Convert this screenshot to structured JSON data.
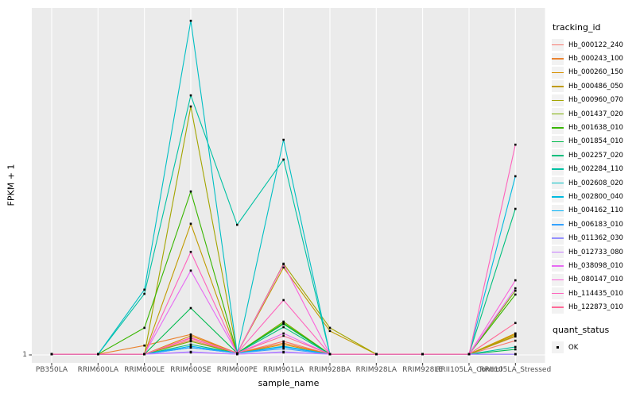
{
  "figure": {
    "background": "#ffffff",
    "panel_background": "#ebebeb",
    "gridline_color": "#ffffff",
    "tick_color": "#333333",
    "axis_text_color": "#4d4d4d",
    "marker_color": "#000000",
    "legend_key_background": "#f2f2f2"
  },
  "y_axis": {
    "title": "FPKM + 1",
    "tick_labels": [
      "1"
    ]
  },
  "x_axis": {
    "title": "sample_name"
  },
  "legend": {
    "tracking_title": "tracking_id",
    "quant_title": "quant_status",
    "quant_items": [
      {
        "label": "OK",
        "marker": "black-square"
      }
    ]
  },
  "chart_data": {
    "type": "line",
    "title": "",
    "xlabel": "sample_name",
    "ylabel": "FPKM + 1",
    "legend_position": "right",
    "grid": "vertical major gridlines per sample plus horizontal line at y tick 1",
    "marker": "small black square at every data point (quant_status = OK)",
    "y_tick_labels": [
      "1"
    ],
    "y_axis_note": "Only the value 1 is labeled on the y axis (baseline). Series 'heights' are the fraction of full panel height above that y=1 baseline as read from the pixels; 0 = FPKM+1 of 1.",
    "categories": [
      "PB350LA",
      "RRIM600LA",
      "RRIM600LE",
      "RRIM600SE",
      "RRIM600PE",
      "RRIM901LA",
      "RRIM928BA",
      "RRIM928LA",
      "RRIM928LE",
      "RRII105LA_Control",
      "RRII105LA_Stressed"
    ],
    "series": [
      {
        "name": "Hb_000122_240",
        "color": "#F8766D",
        "heights": [
          0.002,
          0.002,
          0.002,
          0.043,
          0.005,
          0.039,
          0.002,
          0.002,
          0.002,
          0.002,
          0.041
        ]
      },
      {
        "name": "Hb_000243_100",
        "color": "#EA8331",
        "heights": [
          0.002,
          0.002,
          0.027,
          0.059,
          0.005,
          0.034,
          0.002,
          0.002,
          0.002,
          0.002,
          0.053
        ]
      },
      {
        "name": "Hb_000260_150",
        "color": "#D89000",
        "heights": [
          0.002,
          0.002,
          0.002,
          0.055,
          0.005,
          0.03,
          0.002,
          0.002,
          0.002,
          0.002,
          0.062
        ]
      },
      {
        "name": "Hb_000486_050",
        "color": "#C09B00",
        "heights": [
          0.002,
          0.002,
          0.002,
          0.378,
          0.005,
          0.252,
          0.069,
          0.002,
          0.002,
          0.002,
          0.059
        ]
      },
      {
        "name": "Hb_000960_070",
        "color": "#A3A500",
        "heights": [
          0.002,
          0.002,
          0.002,
          0.716,
          0.005,
          0.263,
          0.078,
          0.002,
          0.002,
          0.002,
          0.055
        ]
      },
      {
        "name": "Hb_001437_020",
        "color": "#7CAE00",
        "heights": [
          0.002,
          0.002,
          0.002,
          0.039,
          0.005,
          0.096,
          0.002,
          0.002,
          0.002,
          0.002,
          0.185
        ]
      },
      {
        "name": "Hb_001638_010",
        "color": "#39B600",
        "heights": [
          0.002,
          0.002,
          0.078,
          0.471,
          0.005,
          0.092,
          0.002,
          0.002,
          0.002,
          0.002,
          0.174
        ]
      },
      {
        "name": "Hb_001854_010",
        "color": "#00BB4E",
        "heights": [
          0.002,
          0.002,
          0.002,
          0.135,
          0.005,
          0.089,
          0.002,
          0.002,
          0.002,
          0.002,
          0.016
        ]
      },
      {
        "name": "Hb_002257_020",
        "color": "#00BF7D",
        "heights": [
          0.002,
          0.002,
          0.002,
          0.03,
          0.005,
          0.08,
          0.002,
          0.002,
          0.002,
          0.002,
          0.421
        ]
      },
      {
        "name": "Hb_002284_110",
        "color": "#00C1A3",
        "heights": [
          0.002,
          0.002,
          0.176,
          0.748,
          0.375,
          0.563,
          0.002,
          0.002,
          0.002,
          0.002,
          0.023
        ]
      },
      {
        "name": "Hb_002608_020",
        "color": "#00BFC4",
        "heights": [
          0.002,
          0.002,
          0.188,
          0.963,
          0.005,
          0.62,
          0.002,
          0.002,
          0.002,
          0.002,
          0.002
        ]
      },
      {
        "name": "Hb_002800_040",
        "color": "#00BAE0",
        "heights": [
          0.002,
          0.002,
          0.002,
          0.021,
          0.005,
          0.025,
          0.002,
          0.002,
          0.002,
          0.002,
          0.515
        ]
      },
      {
        "name": "Hb_004162_110",
        "color": "#00B0F6",
        "heights": [
          0.002,
          0.002,
          0.002,
          0.025,
          0.005,
          0.023,
          0.002,
          0.002,
          0.002,
          0.002,
          0.002
        ]
      },
      {
        "name": "Hb_006183_010",
        "color": "#35A2FF",
        "heights": [
          0.002,
          0.002,
          0.002,
          0.021,
          0.005,
          0.018,
          0.002,
          0.002,
          0.002,
          0.002,
          0.002
        ]
      },
      {
        "name": "Hb_011362_030",
        "color": "#9590FF",
        "heights": [
          0.002,
          0.002,
          0.002,
          0.009,
          0.002,
          0.009,
          0.002,
          0.002,
          0.002,
          0.002,
          0.002
        ]
      },
      {
        "name": "Hb_012733_080",
        "color": "#C77CFF",
        "heights": [
          0.002,
          0.002,
          0.002,
          0.007,
          0.002,
          0.007,
          0.002,
          0.002,
          0.002,
          0.002,
          0.002
        ]
      },
      {
        "name": "Hb_038098_010",
        "color": "#E76BF3",
        "heights": [
          0.002,
          0.002,
          0.002,
          0.243,
          0.005,
          0.062,
          0.002,
          0.002,
          0.002,
          0.002,
          0.192
        ]
      },
      {
        "name": "Hb_080147_010",
        "color": "#FA62DB",
        "heights": [
          0.002,
          0.002,
          0.002,
          0.05,
          0.005,
          0.261,
          0.002,
          0.002,
          0.002,
          0.002,
          0.215
        ]
      },
      {
        "name": "Hb_114435_010",
        "color": "#FF62BC",
        "heights": [
          0.002,
          0.002,
          0.002,
          0.297,
          0.005,
          0.158,
          0.002,
          0.002,
          0.002,
          0.002,
          0.606
        ]
      },
      {
        "name": "Hb_122873_010",
        "color": "#FF6A98",
        "heights": [
          0.002,
          0.002,
          0.002,
          0.048,
          0.005,
          0.055,
          0.002,
          0.002,
          0.002,
          0.002,
          0.092
        ]
      }
    ]
  }
}
